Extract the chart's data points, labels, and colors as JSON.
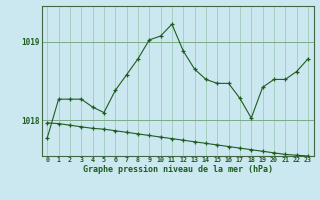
{
  "title": "Graphe pression niveau de la mer (hPa)",
  "background_color": "#cbe8f0",
  "plot_bg_color": "#cbe8f0",
  "grid_color": "#a0ccbb",
  "line_color": "#1e5c1e",
  "x_ticks": [
    0,
    1,
    2,
    3,
    4,
    5,
    6,
    7,
    8,
    9,
    10,
    11,
    12,
    13,
    14,
    15,
    16,
    17,
    18,
    19,
    20,
    21,
    22,
    23
  ],
  "ylim": [
    1017.55,
    1019.45
  ],
  "yticks": [
    1018,
    1019
  ],
  "series1_x": [
    0,
    1,
    2,
    3,
    4,
    5,
    6,
    7,
    8,
    9,
    10,
    11,
    12,
    13,
    14,
    15,
    16,
    17,
    18,
    19,
    20,
    21,
    22,
    23
  ],
  "series1_y": [
    1017.78,
    1018.27,
    1018.27,
    1018.27,
    1018.17,
    1018.1,
    1018.38,
    1018.58,
    1018.78,
    1019.02,
    1019.07,
    1019.22,
    1018.88,
    1018.65,
    1018.52,
    1018.47,
    1018.47,
    1018.28,
    1018.03,
    1018.42,
    1018.52,
    1018.52,
    1018.62,
    1018.78
  ],
  "series2_x": [
    0,
    1,
    2,
    3,
    4,
    5,
    6,
    7,
    8,
    9,
    10,
    11,
    12,
    13,
    14,
    15,
    16,
    17,
    18,
    19,
    20,
    21,
    22,
    23
  ],
  "series2_y": [
    1017.97,
    1017.96,
    1017.94,
    1017.92,
    1017.9,
    1017.89,
    1017.87,
    1017.85,
    1017.83,
    1017.81,
    1017.79,
    1017.77,
    1017.75,
    1017.73,
    1017.71,
    1017.69,
    1017.67,
    1017.65,
    1017.63,
    1017.61,
    1017.59,
    1017.57,
    1017.56,
    1017.55
  ]
}
